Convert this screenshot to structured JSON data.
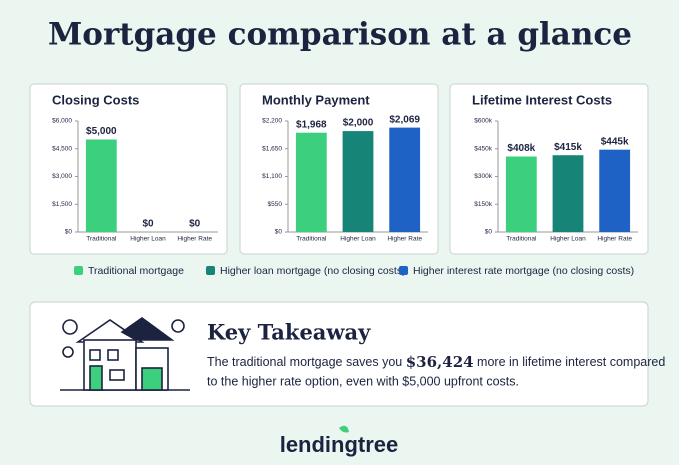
{
  "title": "Mortgage comparison at a glance",
  "chart_data": [
    {
      "type": "bar",
      "title": "Closing Costs",
      "categories": [
        "Traditional",
        "Higher Loan",
        "Higher Rate"
      ],
      "values": [
        5000,
        0,
        0
      ],
      "value_labels": [
        "$5,000",
        "$0",
        "$0"
      ],
      "ylim": [
        0,
        6000
      ],
      "yticks": [
        {
          "value": 0,
          "label": "$0"
        },
        {
          "value": 1500,
          "label": "$1,500"
        },
        {
          "value": 3000,
          "label": "$3,000"
        },
        {
          "value": 4500,
          "label": "$4,500"
        },
        {
          "value": 6000,
          "label": "$6,000"
        }
      ]
    },
    {
      "type": "bar",
      "title": "Monthly Payment",
      "categories": [
        "Traditional",
        "Higher Loan",
        "Higher Rate"
      ],
      "values": [
        1968,
        2000,
        2069
      ],
      "value_labels": [
        "$1,968",
        "$2,000",
        "$2,069"
      ],
      "ylim": [
        0,
        2200
      ],
      "yticks": [
        {
          "value": 0,
          "label": "$0"
        },
        {
          "value": 550,
          "label": "$550"
        },
        {
          "value": 1100,
          "label": "$1,100"
        },
        {
          "value": 1650,
          "label": "$1,650"
        },
        {
          "value": 2200,
          "label": "$2,200"
        }
      ]
    },
    {
      "type": "bar",
      "title": "Lifetime Interest Costs",
      "categories": [
        "Traditional",
        "Higher Loan",
        "Higher Rate"
      ],
      "values": [
        408000,
        415000,
        445000
      ],
      "value_labels": [
        "$408k",
        "$415k",
        "$445k"
      ],
      "ylim": [
        0,
        600000
      ],
      "yticks": [
        {
          "value": 0,
          "label": "$0"
        },
        {
          "value": 150000,
          "label": "$150k"
        },
        {
          "value": 300000,
          "label": "$300k"
        },
        {
          "value": 450000,
          "label": "$450k"
        },
        {
          "value": 600000,
          "label": "$600k"
        }
      ]
    }
  ],
  "legend": [
    {
      "label": "Traditional mortgage",
      "color": "#3ccf7d"
    },
    {
      "label": "Higher loan mortgage (no closing costs)",
      "color": "#168577"
    },
    {
      "label": "Higher interest rate mortgage (no closing costs)",
      "color": "#1f62c6"
    }
  ],
  "takeaway": {
    "heading": "Key Takeaway",
    "text_before": "The traditional mortgage saves you ",
    "amount": "$36,424",
    "text_after": " more in lifetime interest compared",
    "line2": "to the higher rate option, even with $5,000 upfront costs."
  },
  "logo": "lendingtree"
}
